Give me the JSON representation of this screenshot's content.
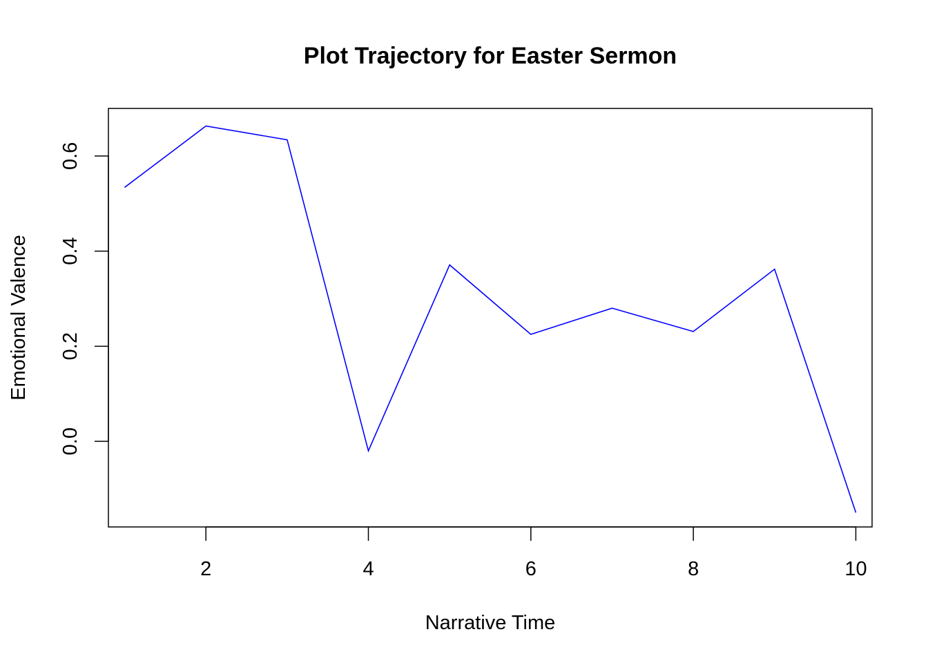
{
  "chart_data": {
    "type": "line",
    "title": "Plot Trajectory for Easter Sermon",
    "xlabel": "Narrative Time",
    "ylabel": "Emotional Valence",
    "x": [
      1,
      2,
      3,
      4,
      5,
      6,
      7,
      8,
      9,
      10
    ],
    "series": [
      {
        "values": [
          0.534,
          0.663,
          0.634,
          -0.02,
          0.371,
          0.225,
          0.28,
          0.231,
          0.362,
          -0.15
        ]
      }
    ],
    "xlim": [
      0.8,
      10.2
    ],
    "ylim": [
      -0.18,
      0.7
    ],
    "x_ticks": [
      2,
      4,
      6,
      8,
      10
    ],
    "y_ticks": [
      0.0,
      0.2,
      0.4,
      0.6
    ],
    "x_tick_labels": [
      "2",
      "4",
      "6",
      "8",
      "10"
    ],
    "y_tick_labels": [
      "0.0",
      "0.2",
      "0.4",
      "0.6"
    ],
    "line_color": "#0000ff",
    "grid": false,
    "legend": "none"
  }
}
